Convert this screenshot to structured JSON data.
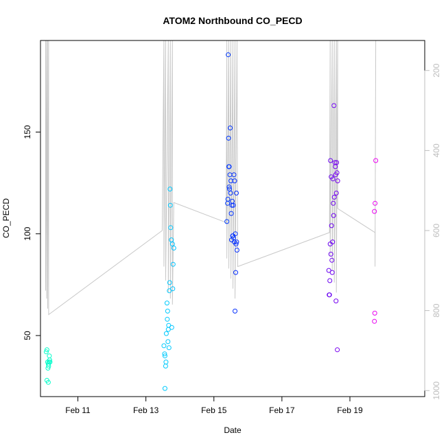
{
  "chart_data": {
    "type": "scatter",
    "title": "ATOM2 Northbound CO_PECD",
    "xlabel": "Date",
    "ylabel": "CO_PECD",
    "x_unit": "days (Feb 2000s, day-of-month)",
    "xlim": [
      9.9,
      21.2
    ],
    "ylim": [
      20,
      195
    ],
    "xticks": [
      11,
      13,
      15,
      17,
      19
    ],
    "xtick_labels": [
      "Feb 11",
      "Feb 13",
      "Feb 15",
      "Feb 17",
      "Feb 19"
    ],
    "yticks": [
      50,
      100,
      150
    ],
    "ytick_labels": [
      "50",
      "100",
      "150"
    ],
    "right_axis": {
      "label": "",
      "reversed": true,
      "lim": [
        1015,
        125
      ],
      "ticks": [
        200,
        400,
        600,
        800,
        1000
      ],
      "tick_labels": [
        "200",
        "400",
        "600",
        "800",
        "1000"
      ],
      "color": "#bdbdbd"
    },
    "grid": false,
    "color_by": "date (cyan to magenta gradient)",
    "series": [
      {
        "name": "",
        "values": [
          {
            "x": 10.07,
            "y": 42
          },
          {
            "x": 10.09,
            "y": 43
          },
          {
            "x": 10.11,
            "y": 37
          },
          {
            "x": 10.12,
            "y": 34
          },
          {
            "x": 10.13,
            "y": 36
          },
          {
            "x": 10.14,
            "y": 35
          },
          {
            "x": 10.15,
            "y": 37
          },
          {
            "x": 10.16,
            "y": 40
          },
          {
            "x": 10.17,
            "y": 38
          },
          {
            "x": 10.18,
            "y": 37
          },
          {
            "x": 10.09,
            "y": 28
          },
          {
            "x": 10.13,
            "y": 27
          },
          {
            "x": 13.53,
            "y": 45
          },
          {
            "x": 13.55,
            "y": 41
          },
          {
            "x": 13.56,
            "y": 40
          },
          {
            "x": 13.58,
            "y": 35
          },
          {
            "x": 13.59,
            "y": 37
          },
          {
            "x": 13.6,
            "y": 51
          },
          {
            "x": 13.62,
            "y": 66
          },
          {
            "x": 13.63,
            "y": 58
          },
          {
            "x": 13.64,
            "y": 62
          },
          {
            "x": 13.65,
            "y": 47
          },
          {
            "x": 13.66,
            "y": 53
          },
          {
            "x": 13.67,
            "y": 55
          },
          {
            "x": 13.68,
            "y": 44
          },
          {
            "x": 13.69,
            "y": 72
          },
          {
            "x": 13.7,
            "y": 76
          },
          {
            "x": 13.71,
            "y": 122
          },
          {
            "x": 13.72,
            "y": 114
          },
          {
            "x": 13.73,
            "y": 103
          },
          {
            "x": 13.75,
            "y": 97
          },
          {
            "x": 13.76,
            "y": 54
          },
          {
            "x": 13.78,
            "y": 95
          },
          {
            "x": 13.79,
            "y": 73
          },
          {
            "x": 13.8,
            "y": 85
          },
          {
            "x": 13.82,
            "y": 93
          },
          {
            "x": 13.56,
            "y": 24
          },
          {
            "x": 15.38,
            "y": 106
          },
          {
            "x": 15.4,
            "y": 115
          },
          {
            "x": 15.42,
            "y": 188
          },
          {
            "x": 15.43,
            "y": 147
          },
          {
            "x": 15.44,
            "y": 133
          },
          {
            "x": 15.45,
            "y": 123
          },
          {
            "x": 15.46,
            "y": 122
          },
          {
            "x": 15.47,
            "y": 129
          },
          {
            "x": 15.48,
            "y": 152
          },
          {
            "x": 15.49,
            "y": 120
          },
          {
            "x": 15.5,
            "y": 126
          },
          {
            "x": 15.51,
            "y": 110
          },
          {
            "x": 15.52,
            "y": 97
          },
          {
            "x": 15.53,
            "y": 114
          },
          {
            "x": 15.54,
            "y": 116
          },
          {
            "x": 15.55,
            "y": 99
          },
          {
            "x": 15.56,
            "y": 99
          },
          {
            "x": 15.57,
            "y": 114
          },
          {
            "x": 15.58,
            "y": 98
          },
          {
            "x": 15.59,
            "y": 129
          },
          {
            "x": 15.6,
            "y": 96
          },
          {
            "x": 15.61,
            "y": 126
          },
          {
            "x": 15.62,
            "y": 62
          },
          {
            "x": 15.63,
            "y": 100
          },
          {
            "x": 15.64,
            "y": 81
          },
          {
            "x": 15.65,
            "y": 95
          },
          {
            "x": 15.66,
            "y": 120
          },
          {
            "x": 15.67,
            "y": 96
          },
          {
            "x": 15.68,
            "y": 92
          },
          {
            "x": 15.41,
            "y": 117
          },
          {
            "x": 15.45,
            "y": 133
          },
          {
            "x": 18.38,
            "y": 82
          },
          {
            "x": 18.4,
            "y": 70
          },
          {
            "x": 18.41,
            "y": 77
          },
          {
            "x": 18.42,
            "y": 95
          },
          {
            "x": 18.43,
            "y": 136
          },
          {
            "x": 18.44,
            "y": 90
          },
          {
            "x": 18.45,
            "y": 128
          },
          {
            "x": 18.46,
            "y": 104
          },
          {
            "x": 18.47,
            "y": 87
          },
          {
            "x": 18.48,
            "y": 81
          },
          {
            "x": 18.49,
            "y": 96
          },
          {
            "x": 18.5,
            "y": 127
          },
          {
            "x": 18.51,
            "y": 115
          },
          {
            "x": 18.52,
            "y": 109
          },
          {
            "x": 18.53,
            "y": 163
          },
          {
            "x": 18.54,
            "y": 118
          },
          {
            "x": 18.56,
            "y": 135
          },
          {
            "x": 18.57,
            "y": 133
          },
          {
            "x": 18.58,
            "y": 129
          },
          {
            "x": 18.59,
            "y": 67
          },
          {
            "x": 18.6,
            "y": 120
          },
          {
            "x": 18.61,
            "y": 135
          },
          {
            "x": 18.62,
            "y": 130
          },
          {
            "x": 18.63,
            "y": 43
          },
          {
            "x": 18.64,
            "y": 126
          },
          {
            "x": 18.39,
            "y": 70
          },
          {
            "x": 19.72,
            "y": 111
          },
          {
            "x": 19.74,
            "y": 115
          },
          {
            "x": 19.76,
            "y": 136
          },
          {
            "x": 19.73,
            "y": 61
          },
          {
            "x": 19.72,
            "y": 57
          }
        ]
      }
    ],
    "secondary_line": {
      "name": "",
      "axis": "right",
      "color": "#c8c8c8",
      "points": [
        {
          "x": 10.05,
          "y": 125
        },
        {
          "x": 10.05,
          "y": 750
        },
        {
          "x": 10.08,
          "y": 125
        },
        {
          "x": 10.08,
          "y": 770
        },
        {
          "x": 10.11,
          "y": 125
        },
        {
          "x": 10.11,
          "y": 795
        },
        {
          "x": 10.14,
          "y": 125
        },
        {
          "x": 10.14,
          "y": 810
        },
        {
          "x": 13.48,
          "y": 600
        },
        {
          "x": 13.53,
          "y": 125
        },
        {
          "x": 13.53,
          "y": 690
        },
        {
          "x": 13.58,
          "y": 125
        },
        {
          "x": 13.58,
          "y": 725
        },
        {
          "x": 13.66,
          "y": 125
        },
        {
          "x": 13.66,
          "y": 755
        },
        {
          "x": 13.72,
          "y": 125
        },
        {
          "x": 13.72,
          "y": 770
        },
        {
          "x": 13.78,
          "y": 125
        },
        {
          "x": 13.78,
          "y": 785
        },
        {
          "x": 13.82,
          "y": 530
        },
        {
          "x": 15.36,
          "y": 580
        },
        {
          "x": 15.38,
          "y": 125
        },
        {
          "x": 15.38,
          "y": 670
        },
        {
          "x": 15.44,
          "y": 125
        },
        {
          "x": 15.44,
          "y": 695
        },
        {
          "x": 15.5,
          "y": 125
        },
        {
          "x": 15.5,
          "y": 720
        },
        {
          "x": 15.56,
          "y": 125
        },
        {
          "x": 15.56,
          "y": 745
        },
        {
          "x": 15.62,
          "y": 125
        },
        {
          "x": 15.62,
          "y": 770
        },
        {
          "x": 15.68,
          "y": 125
        },
        {
          "x": 15.7,
          "y": 690
        },
        {
          "x": 18.4,
          "y": 605
        },
        {
          "x": 18.42,
          "y": 125
        },
        {
          "x": 18.42,
          "y": 665
        },
        {
          "x": 18.48,
          "y": 125
        },
        {
          "x": 18.48,
          "y": 700
        },
        {
          "x": 18.54,
          "y": 125
        },
        {
          "x": 18.54,
          "y": 730
        },
        {
          "x": 18.6,
          "y": 125
        },
        {
          "x": 18.6,
          "y": 755
        },
        {
          "x": 18.64,
          "y": 125
        },
        {
          "x": 18.64,
          "y": 545
        },
        {
          "x": 19.74,
          "y": 605
        },
        {
          "x": 19.74,
          "y": 690
        },
        {
          "x": 19.76,
          "y": 125
        }
      ]
    }
  }
}
